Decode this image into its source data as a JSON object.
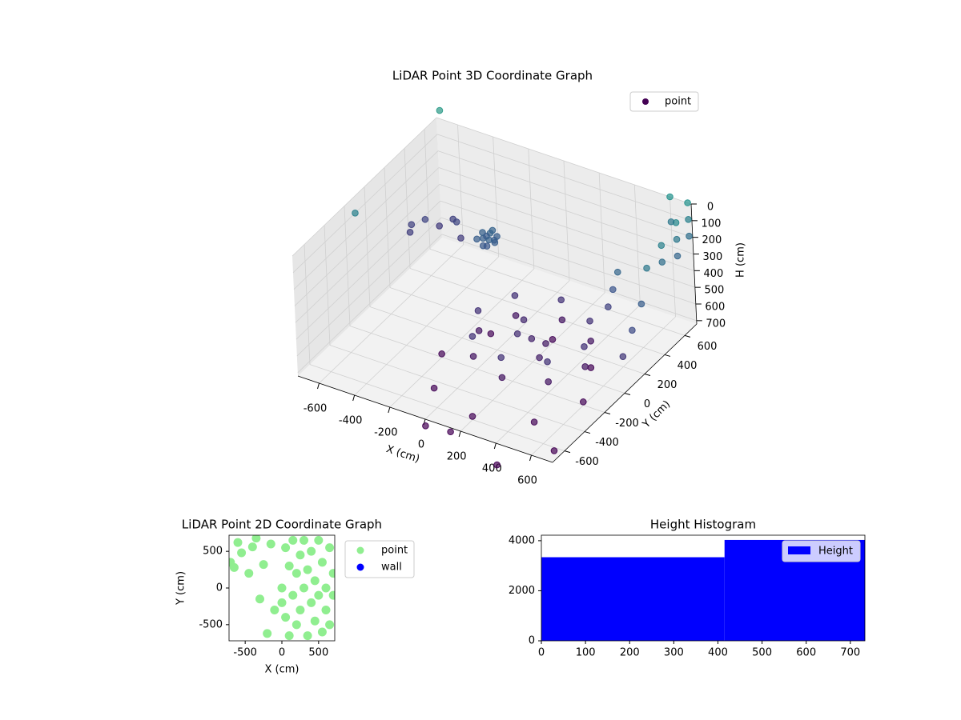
{
  "chart_data": [
    {
      "type": "scatter3d",
      "title": "LiDAR Point 3D Coordinate Graph",
      "xlabel": "X (cm)",
      "ylabel": "Y (cm)",
      "zlabel": "H (cm)",
      "xlim": [
        -720,
        720
      ],
      "ylim": [
        -720,
        720
      ],
      "zlim": [
        0,
        720
      ],
      "z_inverted": true,
      "xticks": [
        -600,
        -400,
        -200,
        0,
        200,
        400,
        600
      ],
      "yticks": [
        -600,
        -400,
        -200,
        0,
        200,
        400,
        600
      ],
      "zticks": [
        0,
        100,
        200,
        300,
        400,
        500,
        600,
        700
      ],
      "grid": true,
      "legend": "upper right",
      "cmap": "viridis",
      "color_by": "z",
      "series": [
        {
          "name": "point",
          "color": "#440154",
          "x": [
            -220,
            -180,
            -240,
            -160,
            -200,
            -210,
            -190,
            -250,
            -170,
            -230,
            -200,
            -180,
            -700,
            -650,
            -600,
            -550,
            -500,
            -450,
            -680,
            500,
            412,
            200,
            -12,
            -100,
            -12,
            200,
            412,
            500,
            412,
            200,
            -12,
            -100,
            -12,
            200,
            412,
            200,
            100,
            300,
            250,
            150,
            600,
            483,
            200,
            -83,
            -200,
            -83,
            200,
            483,
            500,
            520,
            480,
            700,
            700,
            700,
            700,
            700,
            700,
            700,
            700,
            700,
            600,
            600,
            720,
            720,
            720,
            -700,
            -720,
            400,
            100,
            600,
            0
          ],
          "y": [
            280,
            320,
            310,
            290,
            340,
            260,
            300,
            270,
            330,
            330,
            280,
            270,
            400,
            450,
            500,
            550,
            500,
            450,
            350,
            0,
            212,
            300,
            212,
            0,
            -212,
            -300,
            -212,
            0,
            212,
            300,
            212,
            0,
            -212,
            -300,
            -212,
            0,
            100,
            -100,
            50,
            -50,
            -200,
            83,
            200,
            83,
            -200,
            -483,
            -600,
            -483,
            300,
            320,
            280,
            720,
            720,
            720,
            600,
            600,
            600,
            450,
            450,
            300,
            720,
            720,
            200,
            100,
            0,
            720,
            -100,
            -720,
            -650,
            -500,
            -720
          ],
          "z": [
            290,
            310,
            280,
            300,
            270,
            320,
            260,
            300,
            290,
            310,
            330,
            280,
            450,
            430,
            480,
            450,
            420,
            470,
            460,
            520,
            520,
            520,
            520,
            520,
            520,
            520,
            520,
            640,
            640,
            640,
            640,
            640,
            640,
            640,
            640,
            580,
            560,
            600,
            620,
            540,
            700,
            700,
            700,
            700,
            700,
            700,
            700,
            700,
            350,
            250,
            450,
            0,
            100,
            200,
            50,
            150,
            250,
            100,
            200,
            150,
            0,
            150,
            300,
            400,
            500,
            -50,
            100,
            850,
            800,
            820,
            760
          ]
        }
      ]
    },
    {
      "type": "scatter",
      "title": "LiDAR Point 2D Coordinate Graph",
      "xlabel": "X (cm)",
      "ylabel": "Y (cm)",
      "xlim": [
        -720,
        720
      ],
      "ylim": [
        -720,
        720
      ],
      "xticks": [
        -500,
        0,
        500
      ],
      "yticks": [
        -500,
        0,
        500
      ],
      "legend": "outside right",
      "series": [
        {
          "name": "point",
          "color": "#90ee90",
          "x": [
            -700,
            -650,
            -600,
            -550,
            -450,
            -400,
            -300,
            -250,
            -350,
            -200,
            -150,
            -100,
            0,
            50,
            100,
            100,
            150,
            150,
            200,
            200,
            250,
            250,
            300,
            300,
            350,
            350,
            400,
            400,
            450,
            450,
            500,
            500,
            550,
            550,
            600,
            600,
            650,
            650,
            700,
            700,
            50,
            0
          ],
          "y": [
            350,
            280,
            620,
            480,
            200,
            560,
            -150,
            320,
            680,
            -620,
            600,
            -300,
            0,
            -400,
            300,
            -650,
            650,
            -100,
            200,
            -500,
            -300,
            450,
            0,
            650,
            -650,
            250,
            -200,
            500,
            100,
            -450,
            650,
            -100,
            350,
            -600,
            0,
            -300,
            550,
            -500,
            200,
            -100,
            550,
            -200
          ]
        },
        {
          "name": "wall",
          "color": "#0000ff",
          "x": [],
          "y": []
        }
      ]
    },
    {
      "type": "histogram",
      "title": "Height Histogram",
      "bins": [
        0,
        415,
        733
      ],
      "xlim": [
        0,
        733
      ],
      "ylim": [
        0,
        4220
      ],
      "xticks": [
        0,
        100,
        200,
        300,
        400,
        500,
        600,
        700
      ],
      "yticks": [
        0,
        2000,
        4000
      ],
      "legend": "upper right",
      "series": [
        {
          "name": "Height",
          "color": "#0000ff",
          "values": [
            3340,
            4030
          ]
        }
      ]
    }
  ]
}
